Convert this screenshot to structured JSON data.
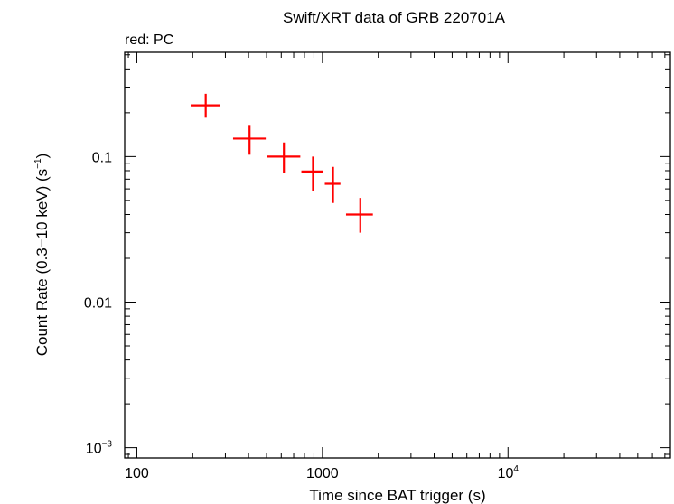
{
  "chart_data": {
    "type": "scatter",
    "title": "Swift/XRT data of GRB 220701A",
    "legend_text": "red: PC",
    "legend_placement": "top-left",
    "xlabel": "Time since BAT trigger (s)",
    "ylabel": {
      "main": "Count Rate (0.3−10 keV) (s",
      "exponent": "−1",
      "close": ")"
    },
    "x_scale": "log",
    "y_scale": "log",
    "xlim": [
      86,
      75000
    ],
    "ylim": [
      0.00085,
      0.52
    ],
    "grid": false,
    "x_ticks": [
      {
        "value": 100,
        "base": "100",
        "exponent": ""
      },
      {
        "value": 1000,
        "base": "1000",
        "exponent": ""
      },
      {
        "value": 10000,
        "base": "10",
        "exponent": "4"
      }
    ],
    "y_ticks": [
      {
        "value": 0.1,
        "base": "0.1",
        "exponent": ""
      },
      {
        "value": 0.01,
        "base": "0.01",
        "exponent": ""
      },
      {
        "value": 0.001,
        "base": "10",
        "exponent": "−3"
      }
    ],
    "series": [
      {
        "color": "#ff0000",
        "points": [
          {
            "x": 235,
            "x_lo": 195,
            "x_hi": 282,
            "y": 0.225,
            "y_lo": 0.185,
            "y_hi": 0.27
          },
          {
            "x": 405,
            "x_lo": 330,
            "x_hi": 495,
            "y": 0.133,
            "y_lo": 0.103,
            "y_hi": 0.165
          },
          {
            "x": 620,
            "x_lo": 500,
            "x_hi": 760,
            "y": 0.1,
            "y_lo": 0.077,
            "y_hi": 0.125
          },
          {
            "x": 890,
            "x_lo": 770,
            "x_hi": 1010,
            "y": 0.079,
            "y_lo": 0.058,
            "y_hi": 0.1
          },
          {
            "x": 1140,
            "x_lo": 1030,
            "x_hi": 1250,
            "y": 0.065,
            "y_lo": 0.048,
            "y_hi": 0.085
          },
          {
            "x": 1600,
            "x_lo": 1340,
            "x_hi": 1870,
            "y": 0.04,
            "y_lo": 0.03,
            "y_hi": 0.052
          }
        ]
      }
    ]
  }
}
